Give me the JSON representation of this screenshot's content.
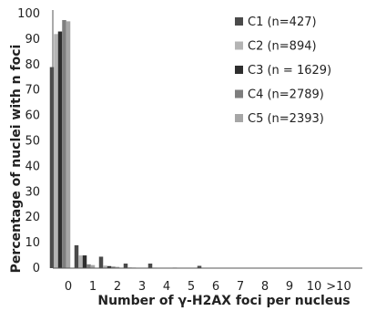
{
  "chart_data": {
    "type": "bar",
    "title": "",
    "xlabel": "Number of γ-H2AX foci per nucleus",
    "ylabel": "Percentage of nuclei with n foci",
    "ylim": [
      0,
      100
    ],
    "yticks": [
      "0",
      "10",
      "20",
      "30",
      "40",
      "50",
      "60",
      "70",
      "80",
      "90",
      "100"
    ],
    "categories": [
      "0",
      "1",
      "2",
      "3",
      "4",
      "5",
      "6",
      "7",
      "8",
      "9",
      "10",
      ">10"
    ],
    "grid": false,
    "legend_position": "top-right",
    "series": [
      {
        "name": "C1 (n=427)",
        "color": "#4a4a4a",
        "values": [
          79,
          9,
          4.5,
          1.8,
          1.8,
          0.2,
          0.9,
          0,
          0,
          0,
          0,
          0
        ]
      },
      {
        "name": "C2 (n=894)",
        "color": "#b4b4b4",
        "values": [
          92,
          5,
          1,
          0.3,
          0.2,
          0.1,
          0.1,
          0,
          0,
          0,
          0,
          0
        ]
      },
      {
        "name": "C3 (n = 1629)",
        "color": "#2e2e2e",
        "values": [
          93,
          5,
          0.8,
          0.2,
          0.1,
          0,
          0,
          0,
          0,
          0,
          0,
          0
        ]
      },
      {
        "name": "C4 (n=2789)",
        "color": "#7e7e7e",
        "values": [
          97.5,
          1.5,
          0.6,
          0.1,
          0.1,
          0,
          0,
          0,
          0,
          0,
          0,
          0
        ]
      },
      {
        "name": "C5 (n=2393)",
        "color": "#a6a6a6",
        "values": [
          97,
          1.2,
          0.5,
          0.1,
          0.1,
          0,
          0,
          0,
          0,
          0,
          0,
          0
        ]
      }
    ]
  }
}
